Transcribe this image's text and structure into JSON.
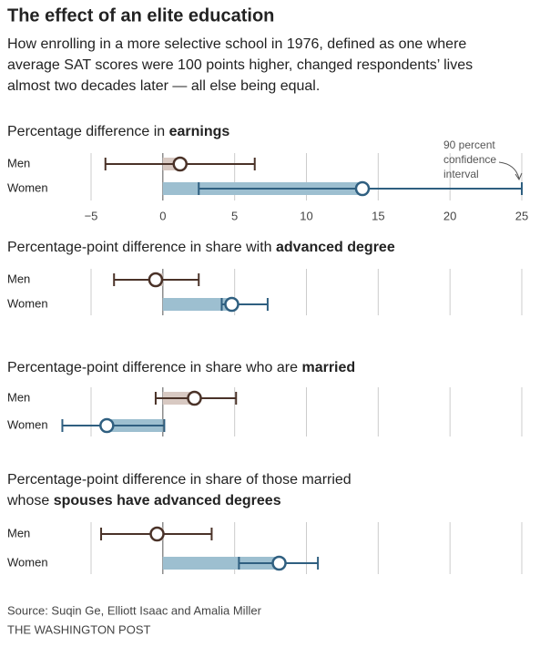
{
  "header": {
    "title": "The effect of an elite education",
    "subtitle": [
      "How enrolling in a more selective school in 1976, defined as one where",
      "average SAT scores were 100 points higher, changed respondents’ lives",
      "almost two decades later — all else being equal."
    ]
  },
  "chart_data": [
    {
      "type": "dot",
      "title": [
        [
          {
            "text": "Percentage difference in ",
            "bold": false
          },
          {
            "text": "earnings",
            "bold": true
          }
        ]
      ],
      "xlim": [
        -5,
        25
      ],
      "xticks": [
        {
          "value": -5,
          "label": "−5"
        },
        0,
        5,
        10,
        15,
        20,
        25
      ],
      "grid": true,
      "annotation": [
        "90 percent",
        "confidence",
        "interval"
      ],
      "series": [
        {
          "name": "Men",
          "color": "#4a3228",
          "bar_color": "#d8c9c2",
          "values": [
            1.2
          ],
          "ci_low": [
            -4.0
          ],
          "ci_high": [
            6.4
          ]
        },
        {
          "name": "Women",
          "color": "#2f5f80",
          "bar_color": "#9dbfd0",
          "values": [
            13.9
          ],
          "ci_low": [
            2.5
          ],
          "ci_high": [
            25
          ]
        }
      ]
    },
    {
      "type": "dot",
      "title": [
        [
          {
            "text": "Percentage-point difference in share with ",
            "bold": false
          },
          {
            "text": "advanced degree",
            "bold": true
          }
        ]
      ],
      "xlim": [
        -5,
        25
      ],
      "grid": true,
      "series": [
        {
          "name": "Men",
          "color": "#4a3228",
          "bar_color": "#d8c9c2",
          "values": [
            -0.5
          ],
          "ci_low": [
            -3.4
          ],
          "ci_high": [
            2.5
          ]
        },
        {
          "name": "Women",
          "color": "#2f5f80",
          "bar_color": "#9dbfd0",
          "values": [
            4.8
          ],
          "ci_low": [
            4.1
          ],
          "ci_high": [
            7.3
          ]
        }
      ]
    },
    {
      "type": "dot",
      "title": [
        [
          {
            "text": "Percentage-point difference in share who are ",
            "bold": false
          },
          {
            "text": "married",
            "bold": true
          }
        ]
      ],
      "xlim": [
        -5,
        25
      ],
      "grid": true,
      "series": [
        {
          "name": "Men",
          "color": "#4a3228",
          "bar_color": "#d8c9c2",
          "values": [
            2.2
          ],
          "ci_low": [
            -0.5
          ],
          "ci_high": [
            5.1
          ]
        },
        {
          "name": "Women",
          "color": "#2f5f80",
          "bar_color": "#9dbfd0",
          "values": [
            -3.9
          ],
          "ci_low": [
            -7.0
          ],
          "ci_high": [
            0.1
          ]
        }
      ]
    },
    {
      "type": "dot",
      "title": [
        [
          {
            "text": "Percentage-point difference in share of those married",
            "bold": false
          }
        ],
        [
          {
            "text": "whose ",
            "bold": false
          },
          {
            "text": "spouses have advanced degrees",
            "bold": true
          }
        ]
      ],
      "xlim": [
        -5,
        25
      ],
      "grid": true,
      "series": [
        {
          "name": "Men",
          "color": "#4a3228",
          "bar_color": "#d8c9c2",
          "values": [
            -0.4
          ],
          "ci_low": [
            -4.3
          ],
          "ci_high": [
            3.4
          ]
        },
        {
          "name": "Women",
          "color": "#2f5f80",
          "bar_color": "#9dbfd0",
          "values": [
            8.1
          ],
          "ci_low": [
            5.3
          ],
          "ci_high": [
            10.8
          ]
        }
      ]
    }
  ],
  "footer": {
    "source": "Source: Suqin Ge, Elliott Isaac and Amalia Miller",
    "credit": "THE WASHINGTON POST"
  }
}
